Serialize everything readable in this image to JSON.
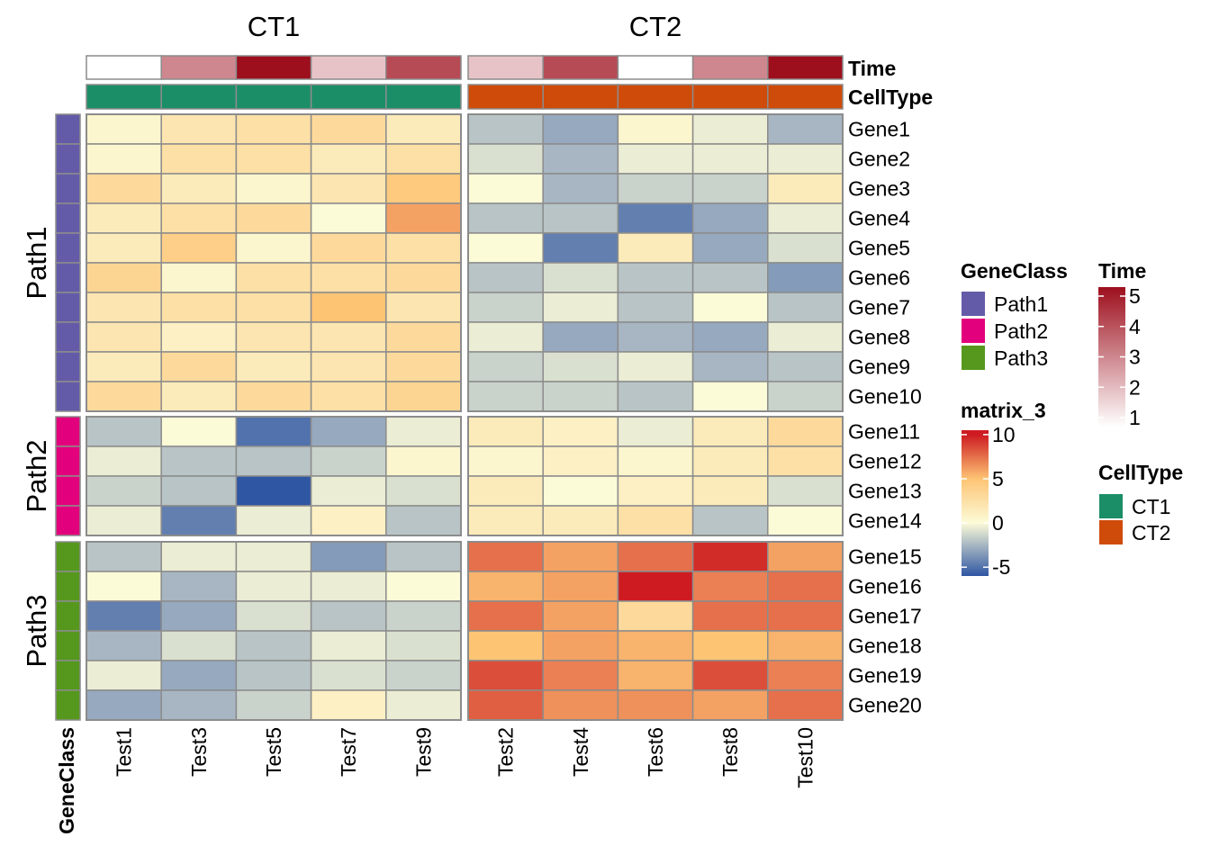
{
  "chart_data": {
    "type": "heatmap",
    "column_groups": [
      {
        "name": "CT1",
        "columns": [
          "Test1",
          "Test3",
          "Test5",
          "Test7",
          "Test9"
        ]
      },
      {
        "name": "CT2",
        "columns": [
          "Test2",
          "Test4",
          "Test6",
          "Test8",
          "Test10"
        ]
      }
    ],
    "row_groups": [
      {
        "name": "Path1",
        "rows": [
          "Gene1",
          "Gene2",
          "Gene3",
          "Gene4",
          "Gene5",
          "Gene6",
          "Gene7",
          "Gene8",
          "Gene9",
          "Gene10"
        ]
      },
      {
        "name": "Path2",
        "rows": [
          "Gene11",
          "Gene12",
          "Gene13",
          "Gene14"
        ]
      },
      {
        "name": "Path3",
        "rows": [
          "Gene15",
          "Gene16",
          "Gene17",
          "Gene18",
          "Gene19",
          "Gene20"
        ]
      }
    ],
    "values": [
      [
        0.5,
        2.0,
        2.5,
        3.0,
        1.5,
        -2.0,
        -3.0,
        0.5,
        -0.5,
        -2.5
      ],
      [
        0.5,
        2.5,
        2.5,
        1.5,
        2.5,
        -1.0,
        -2.5,
        -0.5,
        -0.5,
        -0.5
      ],
      [
        3.0,
        1.5,
        0.5,
        2.0,
        4.5,
        0.0,
        -2.5,
        -1.5,
        -1.5,
        1.5
      ],
      [
        1.5,
        2.5,
        3.0,
        0.0,
        6.0,
        -2.0,
        -2.0,
        -4.5,
        -3.0,
        -0.5
      ],
      [
        1.5,
        4.0,
        0.5,
        3.0,
        2.5,
        0.0,
        -4.5,
        1.5,
        -3.0,
        -1.0
      ],
      [
        3.5,
        0.5,
        2.5,
        2.5,
        3.0,
        -2.0,
        -1.0,
        -2.0,
        -2.0,
        -3.5
      ],
      [
        2.0,
        2.5,
        2.5,
        5.0,
        2.0,
        -1.5,
        -0.5,
        -2.0,
        0.0,
        -2.0
      ],
      [
        2.0,
        1.0,
        2.0,
        2.0,
        3.0,
        -0.5,
        -3.0,
        -2.5,
        -3.0,
        -0.5
      ],
      [
        1.5,
        3.0,
        1.5,
        2.0,
        3.0,
        -1.5,
        -1.0,
        -0.5,
        -2.5,
        -2.0
      ],
      [
        3.0,
        1.5,
        3.0,
        2.5,
        3.5,
        -1.5,
        -1.5,
        -2.0,
        0.0,
        -1.5
      ]
    ],
    "values_path2_path3": [
      [
        -2.0,
        0.0,
        -5.0,
        -3.0,
        -0.5,
        1.5,
        1.0,
        -0.5,
        1.5,
        3.0
      ],
      [
        -0.5,
        -2.0,
        -2.0,
        -1.5,
        0.5,
        0.5,
        1.0,
        0.5,
        1.5,
        2.5
      ],
      [
        -1.5,
        -2.0,
        -6.0,
        -0.5,
        -1.0,
        1.5,
        0.0,
        1.0,
        1.5,
        -1.0
      ],
      [
        -0.5,
        -4.5,
        -0.5,
        1.0,
        -2.0,
        1.5,
        1.5,
        2.5,
        -2.0,
        0.0
      ],
      [
        -2.0,
        -0.5,
        -0.5,
        -3.5,
        -2.0,
        7.5,
        6.0,
        7.5,
        9.5,
        6.0
      ],
      [
        0.0,
        -2.5,
        -0.5,
        -0.5,
        0.0,
        5.5,
        6.0,
        10.0,
        7.0,
        7.5
      ],
      [
        -4.5,
        -3.0,
        -1.0,
        -2.0,
        -1.5,
        7.5,
        6.0,
        3.0,
        7.5,
        7.5
      ],
      [
        -2.5,
        -1.0,
        -2.0,
        -0.5,
        -1.0,
        5.0,
        6.0,
        5.5,
        5.0,
        5.5
      ],
      [
        -0.5,
        -3.0,
        -2.0,
        -1.0,
        -1.5,
        8.5,
        7.0,
        5.5,
        8.5,
        7.0
      ],
      [
        -3.0,
        -2.5,
        -1.5,
        1.0,
        -0.5,
        8.0,
        6.5,
        6.5,
        6.0,
        7.5
      ]
    ],
    "time": [
      1,
      3,
      5,
      2,
      4,
      2,
      4,
      1,
      3,
      5
    ],
    "annotations": {
      "time_label": "Time",
      "celltype_label": "CellType",
      "geneclass_label": "GeneClass"
    },
    "legends": {
      "geneclass": {
        "title": "GeneClass",
        "items": [
          {
            "label": "Path1",
            "color": "#635BA8"
          },
          {
            "label": "Path2",
            "color": "#E3007C"
          },
          {
            "label": "Path3",
            "color": "#55981D"
          }
        ]
      },
      "matrix": {
        "title": "matrix_3",
        "ticks": [
          "10",
          "5",
          "0",
          "-5"
        ],
        "tick_values": [
          10,
          5,
          0,
          -5
        ],
        "range": [
          -6,
          10.5
        ]
      },
      "time": {
        "title": "Time",
        "ticks": [
          "5",
          "4",
          "3",
          "2",
          "1"
        ],
        "tick_values": [
          5,
          4,
          3,
          2,
          1
        ],
        "range": [
          1,
          5
        ]
      },
      "celltype": {
        "title": "CellType",
        "items": [
          {
            "label": "CT1",
            "color": "#1B8E68"
          },
          {
            "label": "CT2",
            "color": "#CF4B09"
          }
        ]
      }
    },
    "colors": {
      "matrix_scale": [
        [
          -6,
          "#2F56A3"
        ],
        [
          0,
          "#FCFBD8"
        ],
        [
          5,
          "#FDC474"
        ],
        [
          10,
          "#CD1B21"
        ]
      ],
      "time_scale": [
        [
          1,
          "#FFFFFF"
        ],
        [
          5,
          "#9D0F1D"
        ]
      ]
    }
  }
}
